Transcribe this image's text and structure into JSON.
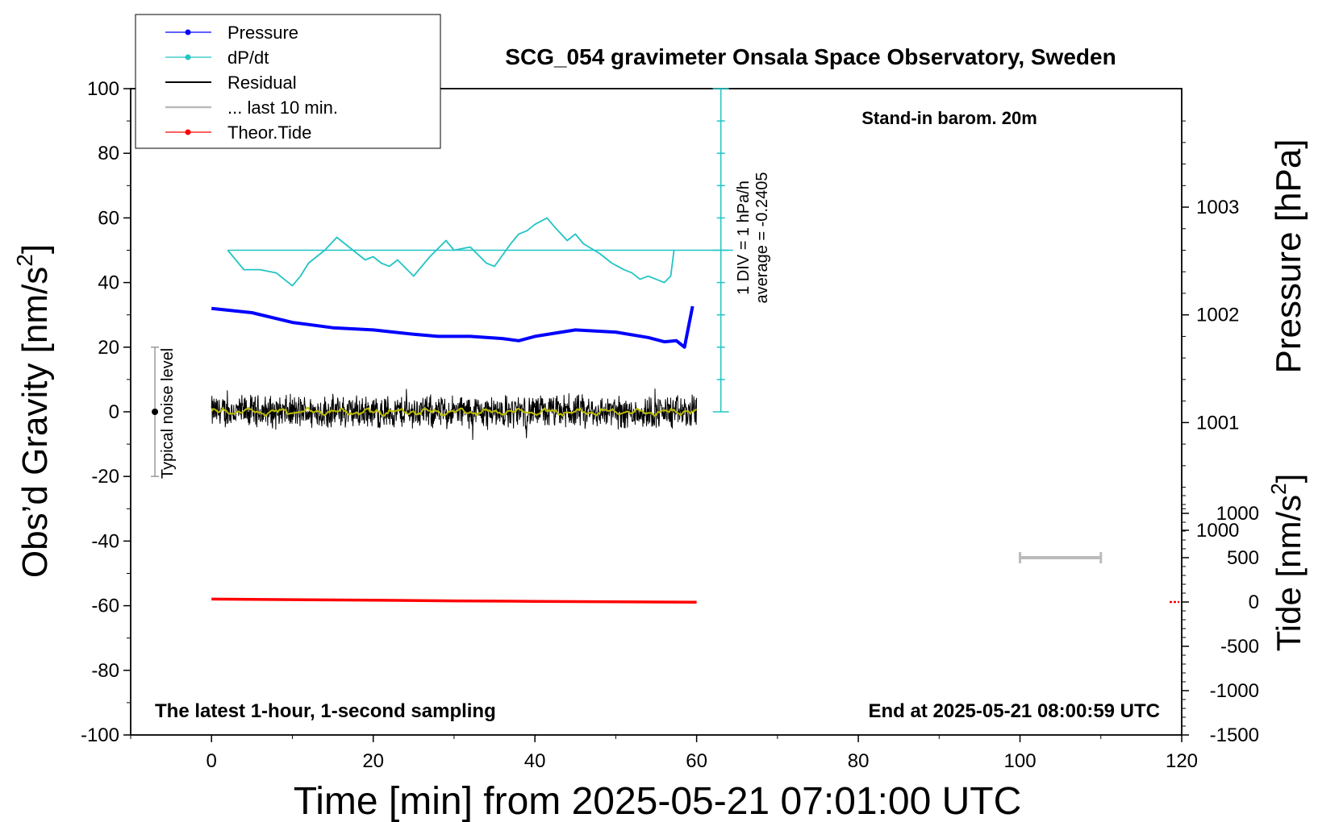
{
  "chart_data": {
    "type": "line",
    "title": "SCG_054 gravimeter Onsala Space Observatory, Sweden",
    "xlabel": "Time [min] from 2025-05-21 07:01:00 UTC",
    "ylabel_left": "Obs’d Gravity [nm/s",
    "ylabel_left_sup": "2",
    "ylabel_left_end": "]",
    "ylabel_right_pressure": "Pressure [hPa]",
    "ylabel_right_tide": "Tide [nm/s",
    "ylabel_right_tide_sup": "2",
    "ylabel_right_tide_end": "]",
    "xlim": [
      -10,
      120
    ],
    "ylim": [
      -100,
      100
    ],
    "pressure_lim": [
      998.1,
      1004.1
    ],
    "tide_lim": [
      -1500,
      1500
    ],
    "x_ticks": [
      "0",
      "20",
      "40",
      "60",
      "80",
      "100",
      "120"
    ],
    "y_ticks": [
      "100",
      "80",
      "60",
      "40",
      "20",
      "0",
      "-20",
      "-40",
      "-60",
      "-80",
      "-100"
    ],
    "pressure_ticks": [
      "1003",
      "1002",
      "1001",
      "1000"
    ],
    "tide_ticks": [
      "1000",
      "500",
      "0",
      "-500",
      "-1000",
      "-1500"
    ],
    "annotations": {
      "barometer": "Stand-in barom. 20m",
      "bottom_left": "The latest 1-hour, 1-second sampling",
      "bottom_right": "End at 2025-05-21 08:00:59 UTC",
      "noise": "Typical noise level",
      "div_line1": "1 DIV = 1 hPa/h",
      "div_line2": "average = -0.2405"
    },
    "legend": {
      "placement": "top-left",
      "entries": [
        {
          "name": "Pressure",
          "color": "#0000ff",
          "marker": true
        },
        {
          "name": "dP/dt",
          "color": "#22c4c4",
          "marker": true
        },
        {
          "name": "Residual",
          "color": "#000000",
          "marker": false
        },
        {
          "name": "... last 10 min.",
          "color": "#bbbbbb",
          "marker": false
        },
        {
          "name": "Theor.Tide",
          "color": "#ff0000",
          "marker": true
        }
      ]
    },
    "series": [
      {
        "name": "Pressure",
        "units": "hPa",
        "color": "#0000ff",
        "x": [
          0,
          5,
          10,
          15,
          20,
          25,
          28,
          32,
          36,
          38,
          40,
          45,
          50,
          54,
          56,
          57.5,
          58.5,
          59.5
        ],
        "values": [
          1002.06,
          1002.02,
          1001.93,
          1001.88,
          1001.86,
          1001.82,
          1001.8,
          1001.8,
          1001.78,
          1001.76,
          1001.8,
          1001.86,
          1001.84,
          1001.79,
          1001.75,
          1001.76,
          1001.7,
          1002.08
        ]
      },
      {
        "name": "dP/dt",
        "units": "nm/s2 scale",
        "color": "#22c4c4",
        "x": [
          2,
          4,
          6,
          8,
          9,
          10,
          11,
          12,
          14,
          15.5,
          17,
          19,
          20,
          21,
          22,
          23,
          25,
          27,
          29,
          30,
          32,
          34,
          35,
          37,
          38,
          39,
          40,
          41.5,
          42.5,
          44,
          45,
          46,
          48,
          49.5,
          51,
          52,
          53,
          54,
          55,
          56,
          56.8,
          57.2
        ],
        "values": [
          50,
          44,
          44,
          43,
          41,
          39,
          42,
          46,
          50,
          54,
          51,
          47,
          48,
          46,
          45,
          47,
          42,
          48,
          53,
          50,
          51,
          46,
          45,
          52,
          55,
          56,
          58,
          60,
          57,
          53,
          55,
          52,
          49,
          46,
          44,
          43,
          41,
          42,
          41,
          40,
          42,
          50
        ]
      },
      {
        "name": "Residual",
        "units": "nm/s2",
        "color": "#000000",
        "x_start": 0,
        "x_end": 60,
        "amplitude": 4
      },
      {
        "name": "... last 10 min.",
        "units": "nm/s2",
        "color": "#bbbb00",
        "x_start": 0,
        "x_end": 60,
        "amplitude": 1
      },
      {
        "name": "Theor.Tide",
        "units": "nm/s2",
        "color": "#ff0000",
        "x": [
          0,
          10,
          20,
          30,
          40,
          50,
          60
        ],
        "values": [
          33,
          26,
          20,
          13,
          7,
          2,
          -3
        ]
      }
    ],
    "dpdt_baseline": 50,
    "noise_bar": [
      -20,
      20
    ],
    "gray_bar": {
      "x": [
        100,
        110
      ],
      "tide": 500
    },
    "tide_end_marker": {
      "x": 118.5,
      "tide": 0
    }
  }
}
